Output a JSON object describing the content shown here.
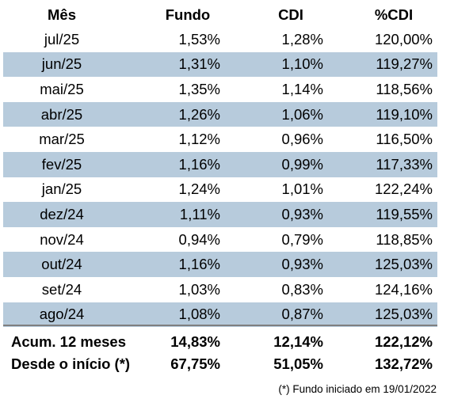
{
  "header": {
    "mes": "Mês",
    "fundo": "Fundo",
    "cdi": "CDI",
    "pcdi": "%CDI"
  },
  "rows": [
    {
      "mes": "jul/25",
      "fundo": "1,53%",
      "cdi": "1,28%",
      "pcdi": "120,00%"
    },
    {
      "mes": "jun/25",
      "fundo": "1,31%",
      "cdi": "1,10%",
      "pcdi": "119,27%"
    },
    {
      "mes": "mai/25",
      "fundo": "1,35%",
      "cdi": "1,14%",
      "pcdi": "118,56%"
    },
    {
      "mes": "abr/25",
      "fundo": "1,26%",
      "cdi": "1,06%",
      "pcdi": "119,10%"
    },
    {
      "mes": "mar/25",
      "fundo": "1,12%",
      "cdi": "0,96%",
      "pcdi": "116,50%"
    },
    {
      "mes": "fev/25",
      "fundo": "1,16%",
      "cdi": "0,99%",
      "pcdi": "117,33%"
    },
    {
      "mes": "jan/25",
      "fundo": "1,24%",
      "cdi": "1,01%",
      "pcdi": "122,24%"
    },
    {
      "mes": "dez/24",
      "fundo": "1,11%",
      "cdi": "0,93%",
      "pcdi": "119,55%"
    },
    {
      "mes": "nov/24",
      "fundo": "0,94%",
      "cdi": "0,79%",
      "pcdi": "118,85%"
    },
    {
      "mes": "out/24",
      "fundo": "1,16%",
      "cdi": "0,93%",
      "pcdi": "125,03%"
    },
    {
      "mes": "set/24",
      "fundo": "1,03%",
      "cdi": "0,83%",
      "pcdi": "124,16%"
    },
    {
      "mes": "ago/24",
      "fundo": "1,08%",
      "cdi": "0,87%",
      "pcdi": "125,03%"
    }
  ],
  "summary": [
    {
      "label": "Acum. 12 meses",
      "fundo": "14,83%",
      "cdi": "12,14%",
      "pcdi": "122,12%"
    },
    {
      "label": "Desde o início (*)",
      "fundo": "67,75%",
      "cdi": "51,05%",
      "pcdi": "132,72%"
    }
  ],
  "footnote": "(*) Fundo iniciado em 19/01/2022",
  "colors": {
    "shaded_row": "#b7cbdc",
    "divider": "#7f7f7f"
  }
}
